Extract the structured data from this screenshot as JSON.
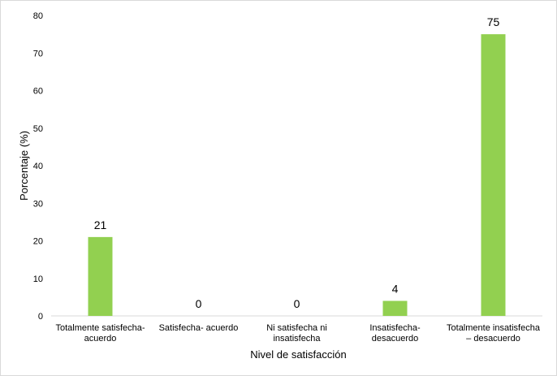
{
  "chart_data": {
    "type": "bar",
    "title": "",
    "xlabel": "Nivel de satisfacción",
    "ylabel": "Porcentaje (%)",
    "ylim": [
      0,
      80
    ],
    "yticks": [
      0,
      10,
      20,
      30,
      40,
      50,
      60,
      70,
      80
    ],
    "grid": false,
    "legend": "none",
    "bar_color": "#92d050",
    "categories": [
      [
        "Totalmente satisfecha-",
        "acuerdo"
      ],
      [
        "Satisfecha- acuerdo"
      ],
      [
        "Ni satisfecha ni",
        "insatisfecha"
      ],
      [
        "Insatisfecha-",
        "desacuerdo"
      ],
      [
        "Totalmente insatisfecha",
        "– desacuerdo"
      ]
    ],
    "values": [
      21,
      0,
      0,
      4,
      75
    ]
  }
}
